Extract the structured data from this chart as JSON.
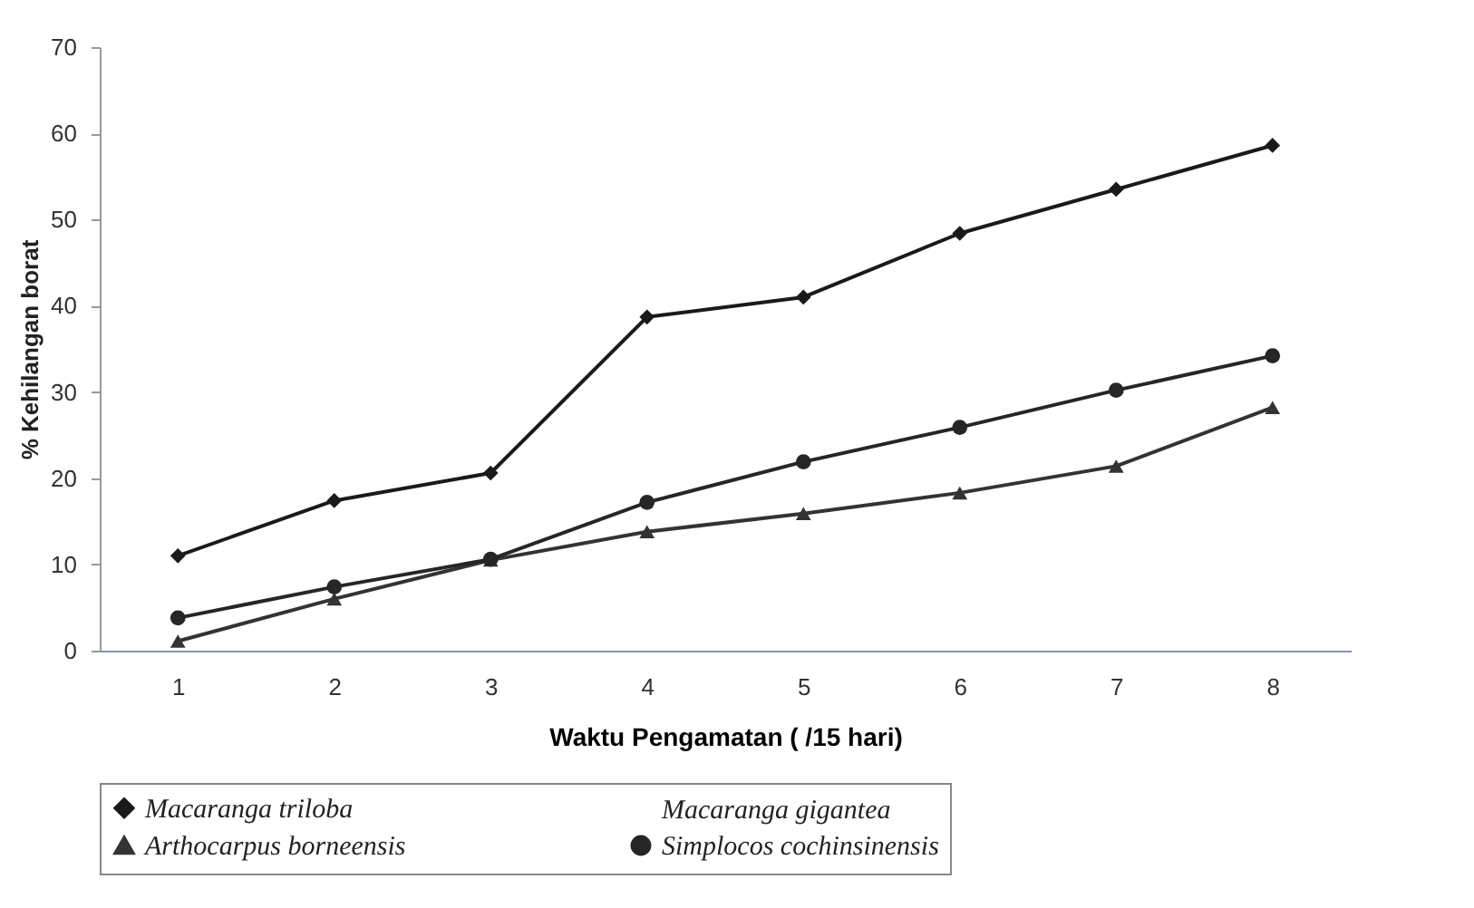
{
  "chart_data": {
    "type": "line",
    "xlabel": "Waktu Pengamatan ( /15 hari)",
    "ylabel": "% Kehilangan borat",
    "categories": [
      "1",
      "2",
      "3",
      "4",
      "5",
      "6",
      "7",
      "8"
    ],
    "ylim": [
      0,
      70
    ],
    "yticks": [
      0,
      10,
      20,
      30,
      40,
      50,
      60,
      70
    ],
    "grid": false,
    "legend": "bottom",
    "line_style": "solid",
    "series": [
      {
        "name": "Macaranga triloba",
        "color": "#1a1a1a",
        "marker": "diamond",
        "values": [
          11.0,
          17.4,
          20.6,
          38.7,
          41.0,
          48.4,
          53.5,
          58.6
        ]
      },
      {
        "name": "Macaranga gigantea",
        "marker": "none",
        "values": [
          null,
          null,
          null,
          null,
          null,
          null,
          null,
          null
        ]
      },
      {
        "name": "Arthocarpus borneensis",
        "color": "#333333",
        "marker": "triangle",
        "values": [
          1.1,
          6.0,
          10.5,
          13.8,
          15.9,
          18.3,
          21.4,
          28.2
        ]
      },
      {
        "name": "Simplocos cochinsinensis",
        "color": "#262626",
        "marker": "circle",
        "values": [
          3.8,
          7.4,
          10.6,
          17.2,
          21.9,
          25.9,
          30.2,
          34.2
        ]
      }
    ]
  }
}
